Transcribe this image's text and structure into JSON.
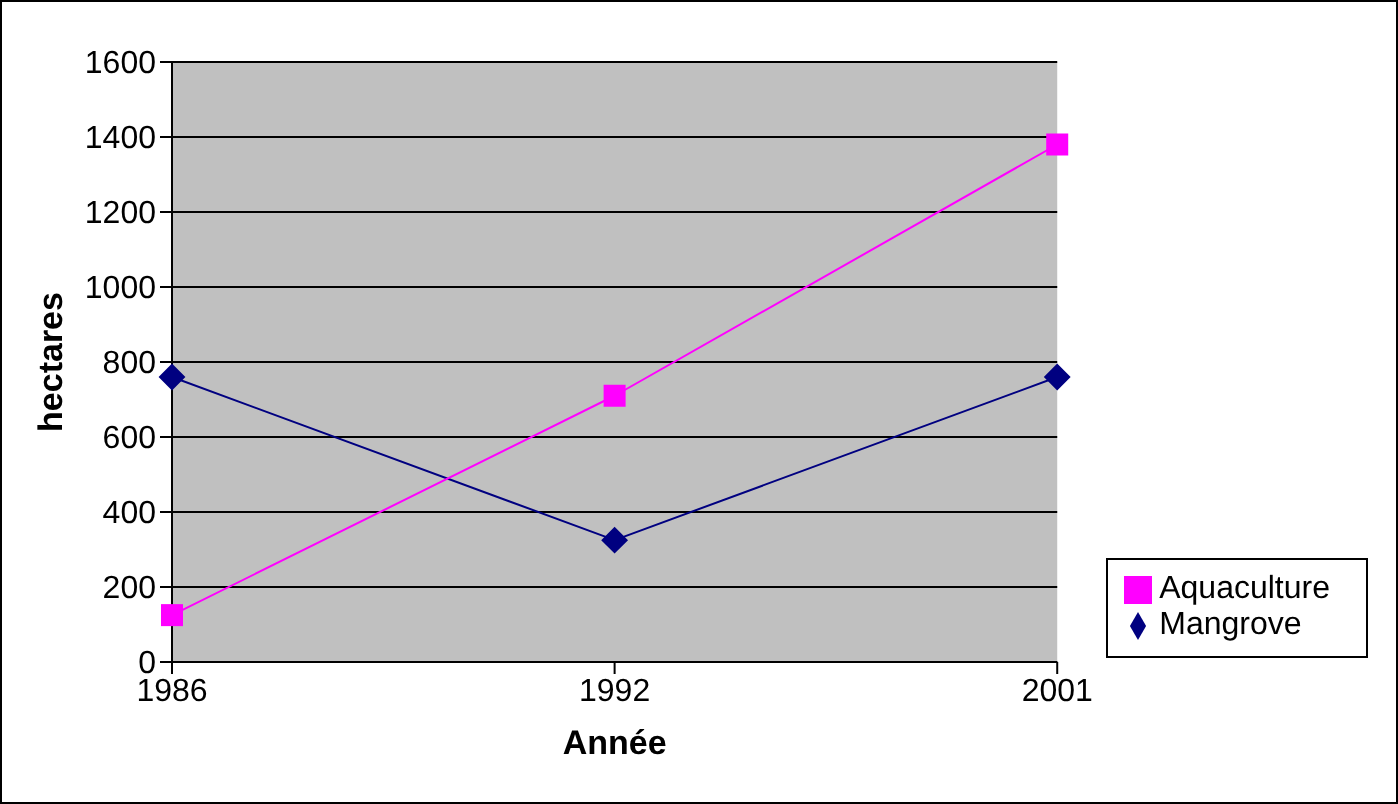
{
  "chart_data": {
    "type": "line",
    "xlabel": "Année",
    "ylabel": "hectares",
    "categories": [
      "1986",
      "1992",
      "2001"
    ],
    "series": [
      {
        "name": "Mangrove",
        "color": "#000080",
        "marker": "diamond",
        "values": [
          760,
          325,
          760
        ]
      },
      {
        "name": "Aquaculture",
        "color": "#ff00ff",
        "marker": "square",
        "values": [
          125,
          710,
          1380
        ]
      }
    ],
    "ylim": [
      0,
      1600
    ],
    "yticks": [
      0,
      200,
      400,
      600,
      800,
      1000,
      1200,
      1400,
      1600
    ],
    "grid": "y",
    "legend": "bottom right"
  }
}
